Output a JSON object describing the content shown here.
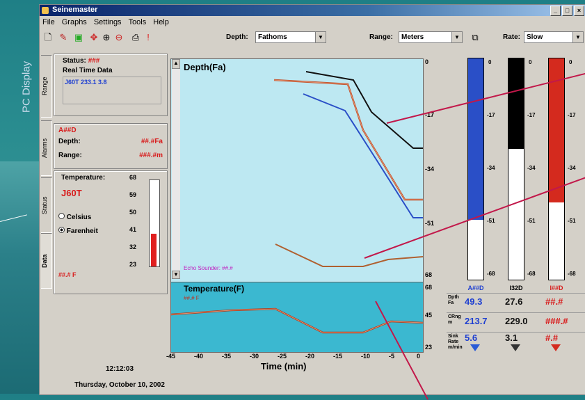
{
  "side_label": "PC Display",
  "window": {
    "title": "Seinemaster"
  },
  "menu": [
    "File",
    "Graphs",
    "Settings",
    "Tools",
    "Help"
  ],
  "toolbar": {
    "depth_label": "Depth:",
    "depth_value": "Fathoms",
    "range_label": "Range:",
    "range_value": "Meters",
    "rate_label": "Rate:",
    "rate_value": "Slow"
  },
  "tabs": [
    "Range",
    "Alarms",
    "Status",
    "Data"
  ],
  "status_box": {
    "status_label": "Status:",
    "status_value": "###",
    "rtd_label": "Real Time Data",
    "rtd_value": "J60T  233.1  3.8"
  },
  "alarm_box": {
    "title": "A##D",
    "depth_label": "Depth:",
    "depth_value": "##.#Fa",
    "range_label": "Range:",
    "range_value": "###.#m"
  },
  "temp_box": {
    "label": "Temperature:",
    "sensor": "J60T",
    "celsius": "Celsius",
    "fahrenheit": "Farenheit",
    "reading": "##.# F",
    "scale": [
      "68",
      "59",
      "50",
      "41",
      "32",
      "23"
    ],
    "level": 0.38
  },
  "depth_plot": {
    "title": "Depth(Fa)",
    "caption": "Echo Sounder: ##.#",
    "ticks": [
      "0",
      "-17",
      "-34",
      "-51",
      "68"
    ]
  },
  "temp_plot": {
    "title": "Temperature(F)",
    "value": "##.# F",
    "ticks": [
      "68",
      "45",
      "23"
    ]
  },
  "x_axis": {
    "label": "Time (min)",
    "ticks": [
      "-45",
      "-40",
      "-35",
      "-30",
      "-25",
      "-20",
      "-15",
      "-10",
      "-5",
      "0"
    ]
  },
  "bars": [
    {
      "name": "A##D",
      "color": "#2a4fc7",
      "level": 0.73,
      "name_color": "#1e3fd1"
    },
    {
      "name": "I32D",
      "color": "#000000",
      "level": 0.41,
      "name_color": "#000000"
    },
    {
      "name": "I##D",
      "color": "#d42a1e",
      "level": 0.65,
      "name_color": "#d81b1b"
    }
  ],
  "bar_ticks": [
    "0",
    "-17",
    "-34",
    "-51",
    "-68"
  ],
  "stats": [
    {
      "label": "Dpth Fa",
      "values": [
        "49.3",
        "27.6",
        "##.#"
      ]
    },
    {
      "label": "CRng m",
      "values": [
        "213.7",
        "229.0",
        "###.#"
      ]
    },
    {
      "label": "Sink Rate m/min",
      "values": [
        "5.6",
        "3.1",
        "#.#"
      ]
    }
  ],
  "clock": {
    "time": "12:12:03",
    "date": "Thursday, October 10, 2002"
  }
}
